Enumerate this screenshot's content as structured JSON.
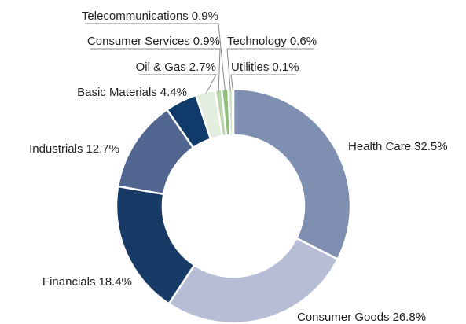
{
  "chart_data": {
    "type": "donut",
    "categories": [
      "Health Care",
      "Consumer Goods",
      "Financials",
      "Industrials",
      "Basic Materials",
      "Oil & Gas",
      "Consumer Services",
      "Telecommunications",
      "Technology",
      "Utilities"
    ],
    "values": [
      32.5,
      26.8,
      18.4,
      12.7,
      4.4,
      2.7,
      0.9,
      0.9,
      0.6,
      0.1
    ],
    "value_labels": [
      "32.5%",
      "26.8%",
      "18.4%",
      "12.7%",
      "4.4%",
      "2.7%",
      "0.9%",
      "0.9%",
      "0.6%",
      "0.1%"
    ],
    "colors": [
      "#7f8fb1",
      "#b6bdd5",
      "#173a66",
      "#506690",
      "#0f3a6a",
      "#e4eedf",
      "#b9d6ac",
      "#8fbf7a",
      "#cfe3c4",
      "#e8f0e0"
    ]
  }
}
